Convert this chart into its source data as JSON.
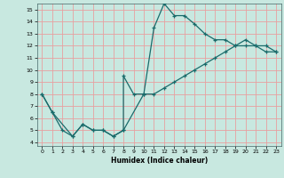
{
  "xlabel": "Humidex (Indice chaleur)",
  "bg_color": "#c8e8e0",
  "grid_color": "#e8a0a0",
  "line_color": "#1a6b6b",
  "xlim": [
    -0.5,
    23.5
  ],
  "ylim": [
    3.7,
    15.5
  ],
  "xticks": [
    0,
    1,
    2,
    3,
    4,
    5,
    6,
    7,
    8,
    9,
    10,
    11,
    12,
    13,
    14,
    15,
    16,
    17,
    18,
    19,
    20,
    21,
    22,
    23
  ],
  "yticks": [
    4,
    5,
    6,
    7,
    8,
    9,
    10,
    11,
    12,
    13,
    14,
    15
  ],
  "line1_x": [
    0,
    1,
    2,
    3,
    4,
    5,
    6,
    7,
    8,
    8,
    9,
    10,
    11,
    12,
    13,
    14,
    15,
    16,
    17,
    18,
    19,
    20,
    21,
    22,
    23
  ],
  "line1_y": [
    8,
    6.5,
    5,
    4.5,
    5.5,
    5,
    5,
    4.5,
    5,
    9.5,
    8,
    8,
    13.5,
    15.5,
    14.5,
    14.5,
    13.8,
    13,
    12.5,
    12.5,
    12,
    12,
    12,
    11.5,
    11.5
  ],
  "line2_x": [
    0,
    1,
    3,
    4,
    5,
    6,
    7,
    8,
    10,
    11,
    12,
    13,
    14,
    15,
    16,
    17,
    18,
    19,
    20,
    21,
    22,
    23
  ],
  "line2_y": [
    8,
    6.5,
    4.5,
    5.5,
    5,
    5,
    4.5,
    5,
    8,
    8,
    8.5,
    9.0,
    9.5,
    10.0,
    10.5,
    11.0,
    11.5,
    12.0,
    12.5,
    12.0,
    12.0,
    11.5
  ]
}
